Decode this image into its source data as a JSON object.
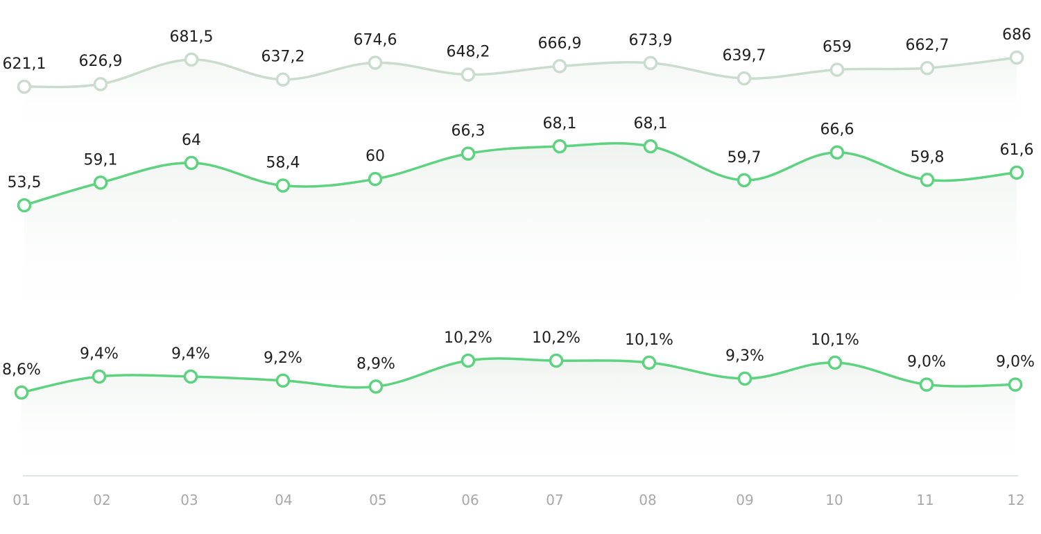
{
  "chart_data": {
    "type": "line",
    "categories": [
      "01",
      "02",
      "03",
      "04",
      "05",
      "06",
      "07",
      "08",
      "09",
      "10",
      "11",
      "12"
    ],
    "series": [
      {
        "values": [
          621.1,
          626.9,
          681.5,
          637.2,
          674.6,
          648.2,
          666.9,
          673.9,
          639.7,
          659,
          662.7,
          686
        ],
        "labels": [
          "621,1",
          "626,9",
          "681,5",
          "637,2",
          "674,6",
          "648,2",
          "666,9",
          "673,9",
          "639,7",
          "659",
          "662,7",
          "686"
        ],
        "color": "#c9dccd"
      },
      {
        "values": [
          53.5,
          59.1,
          64,
          58.4,
          60,
          66.3,
          68.1,
          68.1,
          59.7,
          66.6,
          59.8,
          61.6
        ],
        "labels": [
          "53,5",
          "59,1",
          "64",
          "58,4",
          "60",
          "66,3",
          "68,1",
          "68,1",
          "59,7",
          "66,6",
          "59,8",
          "61,6"
        ],
        "color": "#5dd27f"
      },
      {
        "values": [
          8.6,
          9.4,
          9.4,
          9.2,
          8.9,
          10.2,
          10.2,
          10.1,
          9.3,
          10.1,
          9.0,
          9.0
        ],
        "labels": [
          "8,6%",
          "9,4%",
          "9,4%",
          "9,2%",
          "8,9%",
          "10,2%",
          "10,2%",
          "10,1%",
          "9,3%",
          "10,1%",
          "9,0%",
          "9,0%"
        ],
        "color": "#5dd27f"
      }
    ],
    "grid": false,
    "legend": "none"
  }
}
